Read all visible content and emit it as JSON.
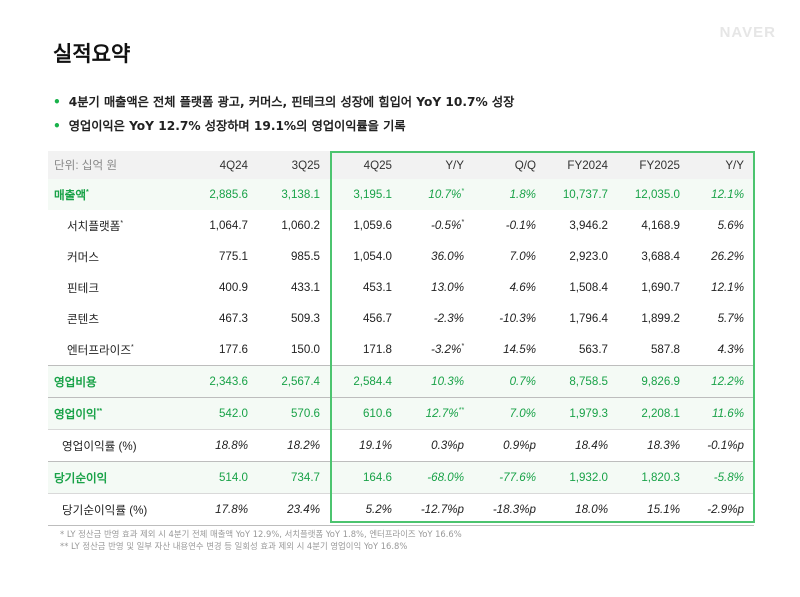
{
  "logo": "NAVER",
  "title": "실적요약",
  "bullets": [
    "4분기 매출액은 전체 플랫폼 광고, 커머스, 핀테크의 성장에 힘입어 YoY 10.7% 성장",
    "영업이익은 YoY 12.7% 성장하며 19.1%의 영업이익률을 기록"
  ],
  "table": {
    "unit_label": "단위: 십억 원",
    "columns": [
      "4Q24",
      "3Q25",
      "4Q25",
      "Y/Y",
      "Q/Q",
      "FY2024",
      "FY2025",
      "Y/Y"
    ],
    "rows": [
      {
        "label": "매출액",
        "mark": "*",
        "cells": [
          "2,885.6",
          "3,138.1",
          "3,195.1",
          "10.7%",
          "1.8%",
          "10,737.7",
          "12,035.0",
          "12.1%"
        ],
        "yoy_mark": "*"
      },
      {
        "label": "서치플랫폼",
        "mark": "*",
        "cells": [
          "1,064.7",
          "1,060.2",
          "1,059.6",
          "-0.5%",
          "-0.1%",
          "3,946.2",
          "4,168.9",
          "5.6%"
        ],
        "yoy_mark": "*"
      },
      {
        "label": "커머스",
        "mark": "",
        "cells": [
          "775.1",
          "985.5",
          "1,054.0",
          "36.0%",
          "7.0%",
          "2,923.0",
          "3,688.4",
          "26.2%"
        ],
        "yoy_mark": ""
      },
      {
        "label": "핀테크",
        "mark": "",
        "cells": [
          "400.9",
          "433.1",
          "453.1",
          "13.0%",
          "4.6%",
          "1,508.4",
          "1,690.7",
          "12.1%"
        ],
        "yoy_mark": ""
      },
      {
        "label": "콘텐츠",
        "mark": "",
        "cells": [
          "467.3",
          "509.3",
          "456.7",
          "-2.3%",
          "-10.3%",
          "1,796.4",
          "1,899.2",
          "5.7%"
        ],
        "yoy_mark": ""
      },
      {
        "label": "엔터프라이즈",
        "mark": "*",
        "cells": [
          "177.6",
          "150.0",
          "171.8",
          "-3.2%",
          "14.5%",
          "563.7",
          "587.8",
          "4.3%"
        ],
        "yoy_mark": "*"
      },
      {
        "label": "영업비용",
        "mark": "",
        "cells": [
          "2,343.6",
          "2,567.4",
          "2,584.4",
          "10.3%",
          "0.7%",
          "8,758.5",
          "9,826.9",
          "12.2%"
        ],
        "yoy_mark": ""
      },
      {
        "label": "영업이익",
        "mark": "**",
        "cells": [
          "542.0",
          "570.6",
          "610.6",
          "12.7%",
          "7.0%",
          "1,979.3",
          "2,208.1",
          "11.6%"
        ],
        "yoy_mark": "**"
      },
      {
        "label": "영업이익률 (%)",
        "mark": "",
        "cells": [
          "18.8%",
          "18.2%",
          "19.1%",
          "0.3%p",
          "0.9%p",
          "18.4%",
          "18.3%",
          "-0.1%p"
        ],
        "yoy_mark": ""
      },
      {
        "label": "당기순이익",
        "mark": "",
        "cells": [
          "514.0",
          "734.7",
          "164.6",
          "-68.0%",
          "-77.6%",
          "1,932.0",
          "1,820.3",
          "-5.8%"
        ],
        "yoy_mark": ""
      },
      {
        "label": "당기순이익률 (%)",
        "mark": "",
        "cells": [
          "17.8%",
          "23.4%",
          "5.2%",
          "-12.7%p",
          "-18.3%p",
          "18.0%",
          "15.1%",
          "-2.9%p"
        ],
        "yoy_mark": ""
      }
    ]
  },
  "notes": [
    "* LY 정산금 반영 효과 제외 시 4분기 전체 매출액 YoY 12.9%, 서치플랫폼 YoY 1.8%, 엔터프라이즈 YoY 16.6%",
    "** LY 정산금 반영 및 일부 자산 내용연수 변경 등 일회성 효과 제외 시 4분기 영업이익 YoY 16.8%"
  ],
  "colors": {
    "accent": "#19a248",
    "highlight_border": "#4cc46f",
    "header_bg": "#f2f2f2"
  }
}
